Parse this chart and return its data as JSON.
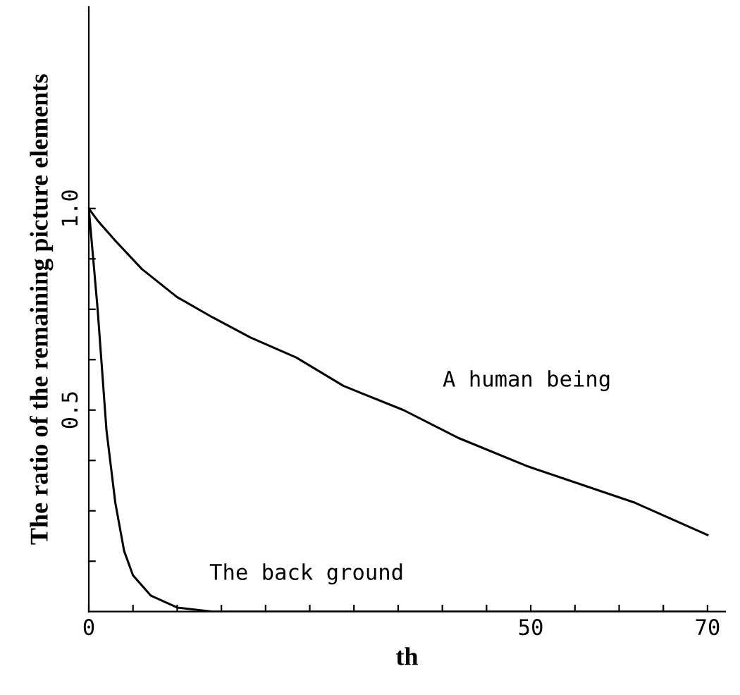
{
  "chart_data": {
    "type": "line",
    "xlabel": "th",
    "ylabel": "The ratio of the remaining picture elements",
    "xlim": [
      0,
      72
    ],
    "ylim": [
      0,
      1.5
    ],
    "xticks": [
      0,
      {
        "value": 5,
        "label": null
      },
      {
        "value": 10,
        "label": null
      },
      {
        "value": 15,
        "label": null
      },
      {
        "value": 20,
        "label": null
      },
      {
        "value": 25,
        "label": null
      },
      {
        "value": 30,
        "label": null
      },
      {
        "value": 35,
        "label": null
      },
      {
        "value": 40,
        "label": null
      },
      {
        "value": 45,
        "label": null
      },
      50,
      {
        "value": 55,
        "label": null
      },
      {
        "value": 60,
        "label": null
      },
      {
        "value": 65,
        "label": null
      },
      70
    ],
    "yticks": [
      {
        "value": 0.125,
        "label": null
      },
      {
        "value": 0.25,
        "label": null
      },
      {
        "value": 0.375,
        "label": null
      },
      {
        "value": 0.5,
        "label": "0.5"
      },
      {
        "value": 0.625,
        "label": null
      },
      {
        "value": 0.75,
        "label": null
      },
      {
        "value": 0.875,
        "label": null
      },
      {
        "value": 1.0,
        "label": "1.0"
      }
    ],
    "grid": false,
    "legend": false,
    "marker": "none",
    "line_style": "solid",
    "series": [
      {
        "name": "A human being",
        "color": "#000000",
        "x": [
          0,
          1,
          3,
          6,
          10,
          14,
          18.3,
          23.5,
          28.8,
          35.6,
          41.9,
          49.7,
          61.8,
          70
        ],
        "values": [
          1.0,
          0.97,
          0.92,
          0.85,
          0.78,
          0.73,
          0.68,
          0.63,
          0.56,
          0.5,
          0.43,
          0.36,
          0.27,
          0.19
        ]
      },
      {
        "name": "The back ground",
        "color": "#000000",
        "x": [
          0,
          1,
          2,
          3,
          4,
          5,
          7,
          10,
          14,
          70
        ],
        "values": [
          1.0,
          0.75,
          0.45,
          0.27,
          0.15,
          0.09,
          0.04,
          0.01,
          0.0,
          0.0
        ]
      }
    ]
  }
}
